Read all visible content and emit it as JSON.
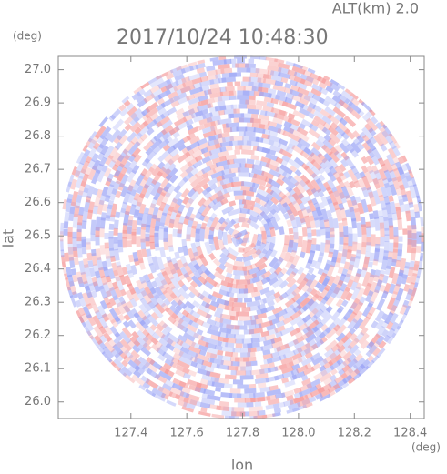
{
  "chart_data": {
    "type": "map",
    "title": "2017/10/24 10:48:30",
    "subtitle": "ALT(km) 2.0",
    "xlabel": "lon",
    "ylabel": "lat",
    "xunit": "(deg)",
    "yunit": "(deg)",
    "xlim": [
      127.14,
      128.45
    ],
    "ylim": [
      25.95,
      27.04
    ],
    "xticks": [
      127.4,
      127.6,
      127.8,
      {
        "value": 128,
        "label": "128.0"
      },
      128.2,
      128.4
    ],
    "yticks": [
      {
        "value": 26,
        "label": "26.0"
      },
      26.1,
      26.2,
      26.3,
      26.4,
      26.5,
      26.6,
      26.7,
      26.8,
      26.9,
      {
        "value": 27,
        "label": "27.0"
      }
    ]
  }
}
